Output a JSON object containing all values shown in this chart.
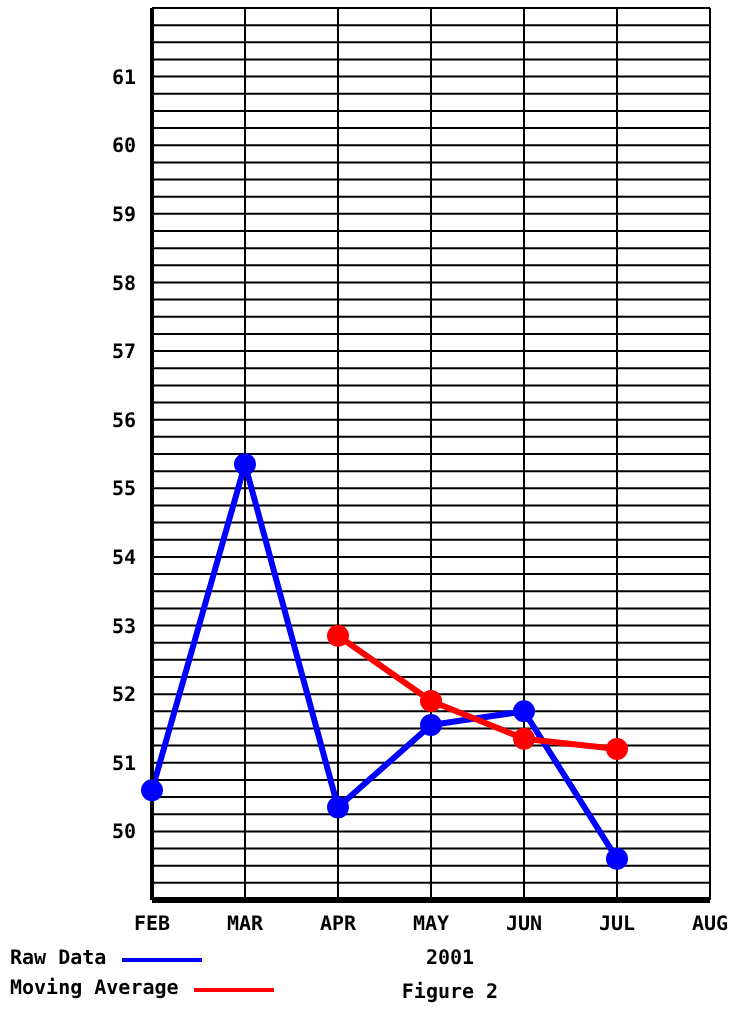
{
  "chart_data": {
    "type": "line",
    "xlabel": "2001",
    "annotations": [
      "Figure 2"
    ],
    "categories": [
      "FEB",
      "MAR",
      "APR",
      "MAY",
      "JUN",
      "JUL",
      "AUG"
    ],
    "series": [
      {
        "name": "Raw Data",
        "color": "#0000ff",
        "values": [
          50.6,
          55.35,
          50.35,
          51.55,
          51.75,
          49.6,
          null
        ]
      },
      {
        "name": "Moving Average",
        "color": "#ff0000",
        "values": [
          null,
          null,
          52.85,
          51.9,
          51.35,
          51.2,
          null
        ]
      }
    ],
    "ylim": [
      49,
      62
    ],
    "yticks": [
      {
        "value": 49,
        "label": null
      },
      {
        "value": 49.25,
        "label": null
      },
      {
        "value": 49.5,
        "label": null
      },
      {
        "value": 49.75,
        "label": null
      },
      50,
      {
        "value": 50.25,
        "label": null
      },
      {
        "value": 50.5,
        "label": null
      },
      {
        "value": 50.75,
        "label": null
      },
      51,
      {
        "value": 51.25,
        "label": null
      },
      {
        "value": 51.5,
        "label": null
      },
      {
        "value": 51.75,
        "label": null
      },
      52,
      {
        "value": 52.25,
        "label": null
      },
      {
        "value": 52.5,
        "label": null
      },
      {
        "value": 52.75,
        "label": null
      },
      53,
      {
        "value": 53.25,
        "label": null
      },
      {
        "value": 53.5,
        "label": null
      },
      {
        "value": 53.75,
        "label": null
      },
      54,
      {
        "value": 54.25,
        "label": null
      },
      {
        "value": 54.5,
        "label": null
      },
      {
        "value": 54.75,
        "label": null
      },
      55,
      {
        "value": 55.25,
        "label": null
      },
      {
        "value": 55.5,
        "label": null
      },
      {
        "value": 55.75,
        "label": null
      },
      56,
      {
        "value": 56.25,
        "label": null
      },
      {
        "value": 56.5,
        "label": null
      },
      {
        "value": 56.75,
        "label": null
      },
      57,
      {
        "value": 57.25,
        "label": null
      },
      {
        "value": 57.5,
        "label": null
      },
      {
        "value": 57.75,
        "label": null
      },
      58,
      {
        "value": 58.25,
        "label": null
      },
      {
        "value": 58.5,
        "label": null
      },
      {
        "value": 58.75,
        "label": null
      },
      59,
      {
        "value": 59.25,
        "label": null
      },
      {
        "value": 59.5,
        "label": null
      },
      {
        "value": 59.75,
        "label": null
      },
      60,
      {
        "value": 60.25,
        "label": null
      },
      {
        "value": 60.5,
        "label": null
      },
      {
        "value": 60.75,
        "label": null
      },
      61,
      {
        "value": 61.25,
        "label": null
      },
      {
        "value": 61.5,
        "label": null
      },
      {
        "value": 61.75,
        "label": null
      },
      {
        "value": 62,
        "label": null
      }
    ],
    "grid": true,
    "legend": "bottom left",
    "marker": "circle",
    "line_style": "solid"
  }
}
